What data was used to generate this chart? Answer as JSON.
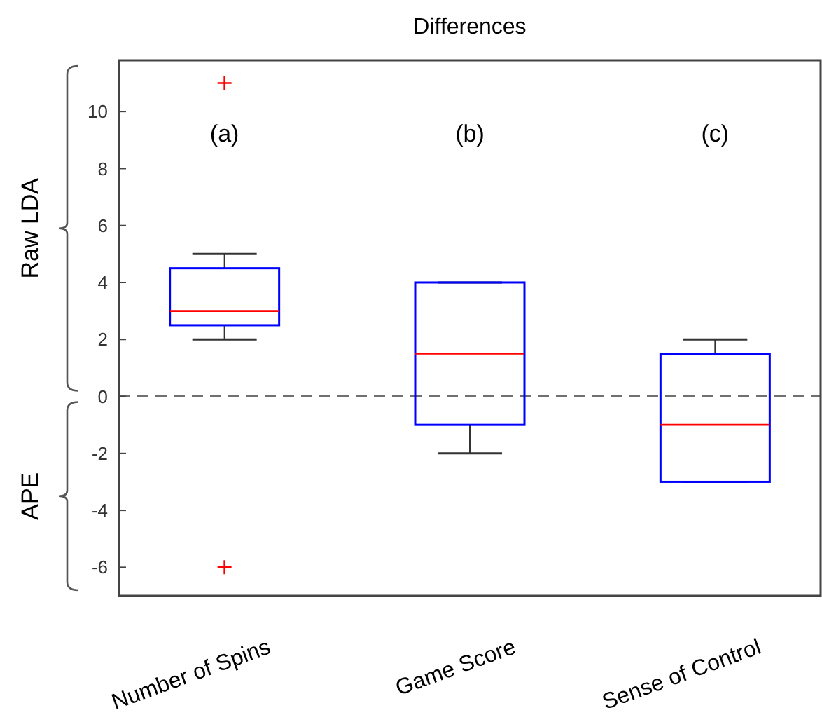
{
  "chart_data": {
    "type": "box",
    "title": "Differences",
    "categories": [
      "Number of Spins",
      "Game Score",
      "Sense of Control"
    ],
    "boxes": [
      {
        "low": 2,
        "q1": 2.5,
        "median": 3,
        "q3": 4.5,
        "high": 5,
        "outliers": [
          11,
          -6
        ]
      },
      {
        "low": -2,
        "q1": -1,
        "median": 1.5,
        "q3": 4,
        "high": 4
      },
      {
        "low": -3,
        "q1": -3,
        "median": -1,
        "q3": 1.5,
        "high": 2
      }
    ],
    "color": "#0000ff",
    "ylim": [
      -7,
      11.8
    ],
    "yticks": [
      -6,
      -4,
      -2,
      0,
      2,
      4,
      6,
      8,
      10
    ],
    "grid": false,
    "ref_lines": [
      {
        "axis": "y",
        "value": 0,
        "color": "#707070",
        "line_style": "dashed"
      }
    ],
    "annotations": [
      "(a)",
      "(b)",
      "(c)",
      "Raw LDA",
      "APE"
    ]
  }
}
